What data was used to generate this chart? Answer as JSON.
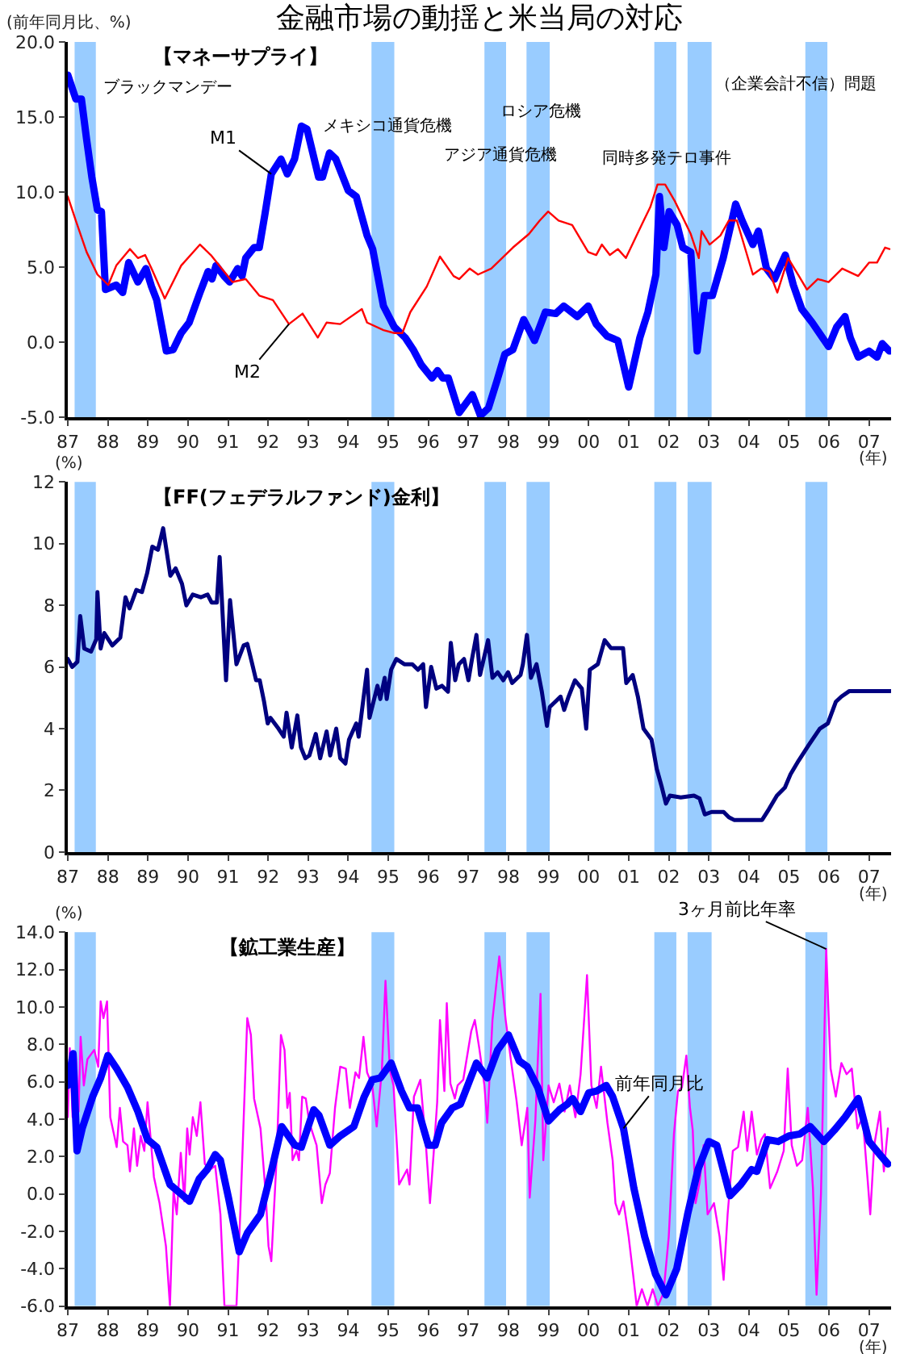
{
  "chart_data": [
    {
      "type": "line",
      "title": "金融市場の動揺と米当局の対応",
      "subtitle": "【マネーサプライ】",
      "ylabel": "(前年同月比、%)",
      "xlabel": "(年)",
      "line_style": "solid",
      "xlim": [
        1987,
        2007.55
      ],
      "xticks": [
        {
          "value": 1987,
          "label": "87"
        },
        {
          "value": 1988,
          "label": "88"
        },
        {
          "value": 1989,
          "label": "89"
        },
        {
          "value": 1990,
          "label": "90"
        },
        {
          "value": 1991,
          "label": "91"
        },
        {
          "value": 1992,
          "label": "92"
        },
        {
          "value": 1993,
          "label": "93"
        },
        {
          "value": 1994,
          "label": "94"
        },
        {
          "value": 1995,
          "label": "95"
        },
        {
          "value": 1996,
          "label": "96"
        },
        {
          "value": 1997,
          "label": "97"
        },
        {
          "value": 1998,
          "label": "98"
        },
        {
          "value": 1999,
          "label": "99"
        },
        {
          "value": 2000,
          "label": "00"
        },
        {
          "value": 2001,
          "label": "01"
        },
        {
          "value": 2002,
          "label": "02"
        },
        {
          "value": 2003,
          "label": "03"
        },
        {
          "value": 2004,
          "label": "04"
        },
        {
          "value": 2005,
          "label": "05"
        },
        {
          "value": 2006,
          "label": "06"
        },
        {
          "value": 2007,
          "label": "07"
        }
      ],
      "ylim": [
        -5,
        20
      ],
      "yticks": [
        {
          "value": -5,
          "label": "-5.0"
        },
        {
          "value": 0,
          "label": "0.0"
        },
        {
          "value": 5,
          "label": "5.0"
        },
        {
          "value": 10,
          "label": "10.0"
        },
        {
          "value": 15,
          "label": "15.0"
        },
        {
          "value": 20,
          "label": "20.0"
        }
      ],
      "bands": [
        {
          "axis": "x",
          "from": 1987.17,
          "to": 1987.7,
          "color": "#99ccff",
          "label": "ブラックマンデー"
        },
        {
          "axis": "x",
          "from": 1994.58,
          "to": 1995.15,
          "color": "#99ccff",
          "label": "メキシコ通貨危機"
        },
        {
          "axis": "x",
          "from": 1997.4,
          "to": 1997.94,
          "color": "#99ccff",
          "label": "アジア通貨危機"
        },
        {
          "axis": "x",
          "from": 1998.45,
          "to": 1999.03,
          "color": "#99ccff",
          "label": "ロシア危機"
        },
        {
          "axis": "x",
          "from": 2001.64,
          "to": 2002.19,
          "color": "#99ccff",
          "label": "同時多発テロ事件"
        },
        {
          "axis": "x",
          "from": 2002.47,
          "to": 2003.07,
          "color": "#99ccff",
          "label": "（企業会計不信）問題"
        },
        {
          "axis": "x",
          "from": 2005.41,
          "to": 2005.96,
          "color": "#99ccff"
        }
      ],
      "series": [
        {
          "name": "M1",
          "color": "#0000ff",
          "x": [
            1987.0,
            1987.2,
            1987.34,
            1987.47,
            1987.6,
            1987.74,
            1987.84,
            1987.94,
            1988.21,
            1988.37,
            1988.52,
            1988.75,
            1988.95,
            1989.09,
            1989.22,
            1989.46,
            1989.63,
            1989.83,
            1990.03,
            1990.3,
            1990.5,
            1990.6,
            1990.7,
            1990.9,
            1991.04,
            1991.24,
            1991.35,
            1991.44,
            1991.65,
            1991.78,
            1991.92,
            1992.08,
            1992.32,
            1992.48,
            1992.66,
            1992.83,
            1992.97,
            1993.26,
            1993.36,
            1993.53,
            1993.69,
            1994.0,
            1994.2,
            1994.47,
            1994.61,
            1994.88,
            1995.15,
            1995.42,
            1995.62,
            1995.82,
            1996.09,
            1996.23,
            1996.36,
            1996.5,
            1996.77,
            1997.1,
            1997.3,
            1997.5,
            1997.71,
            1997.91,
            1998.11,
            1998.38,
            1998.65,
            1998.92,
            1999.18,
            1999.38,
            1999.72,
            1999.99,
            2000.19,
            2000.46,
            2000.73,
            2001.0,
            2001.28,
            2001.48,
            2001.68,
            2001.77,
            2001.88,
            2002.01,
            2002.21,
            2002.35,
            2002.55,
            2002.71,
            2002.89,
            2003.09,
            2003.36,
            2003.67,
            2003.83,
            2004.1,
            2004.24,
            2004.44,
            2004.64,
            2004.91,
            2005.11,
            2005.32,
            2005.58,
            2005.99,
            2006.19,
            2006.4,
            2006.53,
            2006.73,
            2007.0,
            2007.2,
            2007.33,
            2007.51
          ],
          "values": [
            17.8,
            16.2,
            16.2,
            13.5,
            11.0,
            8.8,
            8.7,
            3.5,
            3.8,
            3.3,
            5.3,
            4.0,
            4.9,
            3.7,
            2.8,
            -0.6,
            -0.5,
            0.6,
            1.3,
            3.3,
            4.7,
            4.2,
            5.1,
            4.4,
            4.0,
            4.9,
            4.4,
            5.6,
            6.3,
            6.3,
            8.5,
            11.2,
            12.2,
            11.2,
            12.2,
            14.4,
            14.2,
            11.0,
            11.0,
            12.6,
            12.2,
            10.1,
            9.7,
            7.1,
            6.2,
            2.4,
            1.0,
            0.3,
            -0.5,
            -1.5,
            -2.4,
            -1.9,
            -2.4,
            -2.4,
            -4.7,
            -3.5,
            -4.9,
            -4.4,
            -2.6,
            -0.8,
            -0.5,
            1.5,
            0.1,
            2.0,
            1.9,
            2.4,
            1.7,
            2.4,
            1.2,
            0.4,
            0.1,
            -3.0,
            0.3,
            2.0,
            4.5,
            9.7,
            6.3,
            8.7,
            7.8,
            6.3,
            6.0,
            -0.6,
            3.1,
            3.1,
            5.6,
            9.2,
            8.1,
            6.5,
            7.4,
            4.9,
            4.2,
            5.8,
            3.8,
            2.2,
            1.3,
            -0.3,
            1.0,
            1.7,
            0.3,
            -1.0,
            -0.6,
            -1.0,
            -0.1,
            -0.6
          ]
        },
        {
          "name": "M2",
          "color": "#ff0000",
          "x": [
            1987.0,
            1987.2,
            1987.47,
            1987.74,
            1988.01,
            1988.21,
            1988.55,
            1988.75,
            1988.93,
            1989.09,
            1989.42,
            1989.83,
            1990.3,
            1990.57,
            1990.84,
            1991.11,
            1991.44,
            1991.78,
            1992.12,
            1992.52,
            1992.86,
            1993.24,
            1993.46,
            1993.8,
            1994.34,
            1994.47,
            1994.88,
            1995.15,
            1995.35,
            1995.55,
            1995.96,
            1996.29,
            1996.63,
            1996.77,
            1997.03,
            1997.24,
            1997.57,
            1997.84,
            1998.11,
            1998.51,
            1998.78,
            1998.99,
            1999.25,
            1999.59,
            1999.99,
            2000.19,
            2000.33,
            2000.53,
            2000.73,
            2000.93,
            2001.34,
            2001.54,
            2001.72,
            2001.91,
            2002.15,
            2002.35,
            2002.55,
            2002.75,
            2002.82,
            2003.02,
            2003.29,
            2003.5,
            2003.7,
            2003.9,
            2004.1,
            2004.31,
            2004.51,
            2004.71,
            2004.98,
            2005.25,
            2005.45,
            2005.72,
            2005.99,
            2006.33,
            2006.73,
            2007.0,
            2007.2,
            2007.4,
            2007.51
          ],
          "values": [
            9.7,
            8.1,
            6.0,
            4.5,
            3.8,
            5.1,
            6.2,
            5.6,
            5.8,
            4.9,
            2.9,
            5.1,
            6.5,
            5.8,
            4.9,
            4.0,
            4.2,
            3.1,
            2.8,
            1.2,
            1.9,
            0.3,
            1.3,
            1.2,
            2.2,
            1.3,
            0.8,
            0.6,
            0.6,
            2.0,
            3.7,
            5.7,
            4.4,
            4.2,
            4.9,
            4.5,
            4.9,
            5.6,
            6.3,
            7.2,
            8.1,
            8.7,
            8.1,
            7.8,
            6.0,
            5.8,
            6.5,
            5.8,
            6.2,
            5.6,
            7.9,
            9.0,
            10.5,
            10.5,
            9.4,
            8.3,
            7.2,
            5.6,
            7.4,
            6.5,
            7.1,
            8.1,
            8.1,
            6.3,
            4.5,
            4.9,
            4.7,
            3.3,
            5.6,
            4.4,
            3.5,
            4.2,
            4.0,
            4.9,
            4.4,
            5.3,
            5.3,
            6.3,
            6.2
          ]
        }
      ]
    },
    {
      "type": "line",
      "title": "【FF(フェデラルファンド)金利】",
      "ylabel": "(%)",
      "xlabel": "(年)",
      "line_style": "solid",
      "xlim": [
        1987,
        2007.55
      ],
      "xticks": [
        {
          "value": 1987,
          "label": "87"
        },
        {
          "value": 1988,
          "label": "88"
        },
        {
          "value": 1989,
          "label": "89"
        },
        {
          "value": 1990,
          "label": "90"
        },
        {
          "value": 1991,
          "label": "91"
        },
        {
          "value": 1992,
          "label": "92"
        },
        {
          "value": 1993,
          "label": "93"
        },
        {
          "value": 1994,
          "label": "94"
        },
        {
          "value": 1995,
          "label": "95"
        },
        {
          "value": 1996,
          "label": "96"
        },
        {
          "value": 1997,
          "label": "97"
        },
        {
          "value": 1998,
          "label": "98"
        },
        {
          "value": 1999,
          "label": "99"
        },
        {
          "value": 2000,
          "label": "00"
        },
        {
          "value": 2001,
          "label": "01"
        },
        {
          "value": 2002,
          "label": "02"
        },
        {
          "value": 2003,
          "label": "03"
        },
        {
          "value": 2004,
          "label": "04"
        },
        {
          "value": 2005,
          "label": "05"
        },
        {
          "value": 2006,
          "label": "06"
        },
        {
          "value": 2007,
          "label": "07"
        }
      ],
      "ylim": [
        0,
        12
      ],
      "yticks": [
        0,
        2,
        4,
        6,
        8,
        10,
        12
      ],
      "bands": [
        {
          "axis": "x",
          "from": 1987.17,
          "to": 1987.7,
          "color": "#99ccff"
        },
        {
          "axis": "x",
          "from": 1994.58,
          "to": 1995.15,
          "color": "#99ccff"
        },
        {
          "axis": "x",
          "from": 1997.4,
          "to": 1997.94,
          "color": "#99ccff"
        },
        {
          "axis": "x",
          "from": 1998.45,
          "to": 1999.03,
          "color": "#99ccff"
        },
        {
          "axis": "x",
          "from": 2001.64,
          "to": 2002.19,
          "color": "#99ccff"
        },
        {
          "axis": "x",
          "from": 2002.47,
          "to": 2003.07,
          "color": "#99ccff"
        },
        {
          "axis": "x",
          "from": 2005.41,
          "to": 2005.96,
          "color": "#99ccff"
        }
      ],
      "series": [
        {
          "color": "#000080",
          "x": [
            1987.0,
            1987.11,
            1987.24,
            1987.31,
            1987.41,
            1987.58,
            1987.71,
            1987.74,
            1987.82,
            1987.91,
            1988.11,
            1988.31,
            1988.44,
            1988.54,
            1988.71,
            1988.85,
            1988.98,
            1989.11,
            1989.25,
            1989.38,
            1989.45,
            1989.56,
            1989.69,
            1989.85,
            1989.96,
            1990.12,
            1990.32,
            1990.49,
            1990.59,
            1990.72,
            1990.79,
            1990.95,
            1991.05,
            1991.21,
            1991.39,
            1991.48,
            1991.59,
            1991.7,
            1991.79,
            1991.9,
            1991.99,
            1992.06,
            1992.26,
            1992.39,
            1992.46,
            1992.59,
            1992.73,
            1992.82,
            1992.93,
            1993.03,
            1993.19,
            1993.3,
            1993.46,
            1993.55,
            1993.7,
            1993.8,
            1993.93,
            1994.02,
            1994.2,
            1994.26,
            1994.47,
            1994.53,
            1994.73,
            1994.8,
            1994.91,
            1994.96,
            1995.07,
            1995.2,
            1995.4,
            1995.6,
            1995.74,
            1995.87,
            1995.94,
            1996.07,
            1996.2,
            1996.34,
            1996.49,
            1996.56,
            1996.67,
            1996.76,
            1996.89,
            1997.0,
            1997.09,
            1997.2,
            1997.29,
            1997.49,
            1997.6,
            1997.73,
            1997.87,
            1997.99,
            1998.09,
            1998.3,
            1998.36,
            1998.46,
            1998.56,
            1998.7,
            1998.83,
            1998.96,
            1999.03,
            1999.3,
            1999.39,
            1999.5,
            1999.66,
            1999.83,
            1999.94,
            2000.03,
            2000.23,
            2000.4,
            2000.56,
            2000.86,
            2000.94,
            2001.1,
            2001.23,
            2001.37,
            2001.57,
            2001.7,
            2001.83,
            2001.93,
            2002.03,
            2002.3,
            2002.63,
            2002.77,
            2002.9,
            2003.07,
            2003.37,
            2003.5,
            2003.63,
            2003.9,
            2004.1,
            2004.33,
            2004.5,
            2004.7,
            2004.9,
            2005.04,
            2005.24,
            2005.5,
            2005.77,
            2005.97,
            2006.17,
            2006.31,
            2006.51,
            2006.97,
            2007.53
          ],
          "values": [
            6.26,
            6.0,
            6.17,
            7.65,
            6.6,
            6.5,
            6.9,
            8.43,
            6.6,
            7.1,
            6.7,
            6.95,
            8.26,
            7.9,
            8.5,
            8.43,
            9.04,
            9.9,
            9.8,
            10.5,
            9.9,
            8.96,
            9.2,
            8.7,
            8.0,
            8.35,
            8.26,
            8.35,
            8.09,
            8.09,
            9.57,
            5.57,
            8.17,
            6.09,
            6.7,
            6.75,
            6.17,
            5.57,
            5.57,
            4.87,
            4.17,
            4.35,
            4.0,
            3.74,
            4.52,
            3.39,
            4.43,
            3.39,
            3.04,
            3.13,
            3.83,
            3.04,
            3.91,
            3.13,
            4.0,
            3.04,
            2.87,
            3.65,
            4.17,
            3.74,
            5.91,
            4.35,
            5.39,
            4.96,
            5.65,
            4.96,
            5.91,
            6.26,
            6.09,
            6.09,
            5.91,
            6.09,
            4.7,
            6.0,
            5.3,
            5.39,
            5.2,
            6.78,
            5.57,
            6.09,
            6.26,
            5.57,
            6.26,
            7.04,
            5.74,
            6.87,
            5.65,
            5.83,
            5.57,
            5.83,
            5.48,
            5.74,
            6.09,
            7.04,
            5.65,
            6.09,
            5.22,
            4.09,
            4.7,
            5.04,
            4.61,
            5.04,
            5.57,
            5.3,
            4.0,
            5.91,
            6.09,
            6.87,
            6.61,
            6.61,
            5.48,
            5.74,
            5.04,
            4.0,
            3.65,
            2.7,
            2.09,
            1.57,
            1.83,
            1.77,
            1.83,
            1.74,
            1.22,
            1.3,
            1.3,
            1.13,
            1.04,
            1.04,
            1.04,
            1.04,
            1.39,
            1.83,
            2.09,
            2.52,
            2.96,
            3.48,
            4.0,
            4.17,
            4.87,
            5.04,
            5.22,
            5.22,
            5.22
          ]
        }
      ]
    },
    {
      "type": "line",
      "title": "【鉱工業生産】",
      "ylabel": "(%)",
      "xlabel": "(年)",
      "line_style": "solid",
      "xlim": [
        1987,
        2007.55
      ],
      "xticks": [
        {
          "value": 1987,
          "label": "87"
        },
        {
          "value": 1988,
          "label": "88"
        },
        {
          "value": 1989,
          "label": "89"
        },
        {
          "value": 1990,
          "label": "90"
        },
        {
          "value": 1991,
          "label": "91"
        },
        {
          "value": 1992,
          "label": "92"
        },
        {
          "value": 1993,
          "label": "93"
        },
        {
          "value": 1994,
          "label": "94"
        },
        {
          "value": 1995,
          "label": "95"
        },
        {
          "value": 1996,
          "label": "96"
        },
        {
          "value": 1997,
          "label": "97"
        },
        {
          "value": 1998,
          "label": "98"
        },
        {
          "value": 1999,
          "label": "99"
        },
        {
          "value": 2000,
          "label": "00"
        },
        {
          "value": 2001,
          "label": "01"
        },
        {
          "value": 2002,
          "label": "02"
        },
        {
          "value": 2003,
          "label": "03"
        },
        {
          "value": 2004,
          "label": "04"
        },
        {
          "value": 2005,
          "label": "05"
        },
        {
          "value": 2006,
          "label": "06"
        },
        {
          "value": 2007,
          "label": "07"
        }
      ],
      "ylim": [
        -6,
        14
      ],
      "yticks": [
        {
          "value": -6,
          "label": "-6.0"
        },
        {
          "value": -4,
          "label": "-4.0"
        },
        {
          "value": -2,
          "label": "-2.0"
        },
        {
          "value": 0,
          "label": "0.0"
        },
        {
          "value": 2,
          "label": "2.0"
        },
        {
          "value": 4,
          "label": "4.0"
        },
        {
          "value": 6,
          "label": "6.0"
        },
        {
          "value": 8,
          "label": "8.0"
        },
        {
          "value": 10,
          "label": "10.0"
        },
        {
          "value": 12,
          "label": "12.0"
        },
        {
          "value": 14,
          "label": "14.0"
        }
      ],
      "bands": [
        {
          "axis": "x",
          "from": 1987.17,
          "to": 1987.7,
          "color": "#99ccff"
        },
        {
          "axis": "x",
          "from": 1994.58,
          "to": 1995.15,
          "color": "#99ccff"
        },
        {
          "axis": "x",
          "from": 1997.4,
          "to": 1997.94,
          "color": "#99ccff"
        },
        {
          "axis": "x",
          "from": 1998.45,
          "to": 1999.03,
          "color": "#99ccff"
        },
        {
          "axis": "x",
          "from": 2001.64,
          "to": 2002.19,
          "color": "#99ccff"
        },
        {
          "axis": "x",
          "from": 2002.47,
          "to": 2003.07,
          "color": "#99ccff"
        },
        {
          "axis": "x",
          "from": 2005.41,
          "to": 2005.96,
          "color": "#99ccff"
        }
      ],
      "series": [
        {
          "name": "3ヶ月前比年率",
          "color": "#ff00ff",
          "x": [
            1987.0,
            1987.05,
            1987.12,
            1987.2,
            1987.27,
            1987.32,
            1987.4,
            1987.49,
            1987.66,
            1987.76,
            1987.82,
            1987.89,
            1987.98,
            1988.06,
            1988.22,
            1988.3,
            1988.38,
            1988.49,
            1988.55,
            1988.65,
            1988.73,
            1988.82,
            1988.91,
            1988.99,
            1989.15,
            1989.29,
            1989.45,
            1989.55,
            1989.64,
            1989.72,
            1989.82,
            1989.91,
            1989.98,
            1990.04,
            1990.12,
            1990.22,
            1990.31,
            1990.42,
            1990.55,
            1990.68,
            1990.81,
            1990.91,
            1991.21,
            1991.31,
            1991.48,
            1991.57,
            1991.65,
            1991.81,
            1991.94,
            1992.01,
            1992.08,
            1992.21,
            1992.32,
            1992.41,
            1992.48,
            1992.54,
            1992.61,
            1992.71,
            1992.77,
            1992.85,
            1992.94,
            1993.03,
            1993.21,
            1993.34,
            1993.43,
            1993.54,
            1993.67,
            1993.8,
            1993.94,
            1994.04,
            1994.18,
            1994.27,
            1994.38,
            1994.47,
            1994.6,
            1994.71,
            1994.84,
            1994.93,
            1995.04,
            1995.13,
            1995.27,
            1995.47,
            1995.53,
            1995.64,
            1995.8,
            1995.93,
            1996.04,
            1996.13,
            1996.22,
            1996.29,
            1996.4,
            1996.46,
            1996.55,
            1996.66,
            1996.73,
            1996.87,
            1997.07,
            1997.16,
            1997.27,
            1997.4,
            1997.47,
            1997.6,
            1997.77,
            1997.93,
            1998.07,
            1998.2,
            1998.33,
            1998.47,
            1998.53,
            1998.67,
            1998.8,
            1998.87,
            1999.0,
            1999.13,
            1999.27,
            1999.4,
            1999.53,
            1999.67,
            1999.8,
            1999.96,
            2000.07,
            2000.2,
            2000.31,
            2000.47,
            2000.6,
            2000.67,
            2000.76,
            2000.87,
            2001.0,
            2001.11,
            2001.2,
            2001.33,
            2001.47,
            2001.6,
            2001.73,
            2001.87,
            2002.0,
            2002.13,
            2002.23,
            2002.33,
            2002.44,
            2002.53,
            2002.6,
            2002.67,
            2002.77,
            2002.87,
            2002.97,
            2003.13,
            2003.27,
            2003.37,
            2003.47,
            2003.6,
            2003.73,
            2003.87,
            2003.96,
            2004.07,
            2004.2,
            2004.31,
            2004.4,
            2004.53,
            2004.71,
            2004.87,
            2004.97,
            2005.07,
            2005.2,
            2005.33,
            2005.47,
            2005.6,
            2005.69,
            2005.8,
            2005.93,
            2006.04,
            2006.17,
            2006.31,
            2006.44,
            2006.57,
            2006.71,
            2006.84,
            2006.97,
            2007.03,
            2007.13,
            2007.27,
            2007.37,
            2007.47
          ],
          "values": [
            4.1,
            7.8,
            4.1,
            7.5,
            4.4,
            8.4,
            5.8,
            7.2,
            7.7,
            6.8,
            10.3,
            9.4,
            10.3,
            4.1,
            2.5,
            4.6,
            2.8,
            2.6,
            1.2,
            3.5,
            1.5,
            3.1,
            2.3,
            4.9,
            0.9,
            -0.5,
            -2.8,
            -6.0,
            0.2,
            -1.1,
            2.2,
            -0.4,
            3.5,
            2.1,
            4.1,
            3.1,
            4.9,
            1.6,
            1.3,
            1.5,
            -1.1,
            -6.0,
            -6.0,
            -0.8,
            9.4,
            8.5,
            5.1,
            3.5,
            0.0,
            -2.8,
            -3.6,
            1.8,
            8.5,
            7.7,
            4.6,
            5.4,
            1.8,
            2.3,
            1.8,
            5.2,
            5.1,
            3.8,
            2.6,
            -0.5,
            0.5,
            1.1,
            4.6,
            6.8,
            6.7,
            4.6,
            6.5,
            6.2,
            8.4,
            6.5,
            5.8,
            3.6,
            6.6,
            11.4,
            6.6,
            5.8,
            0.5,
            1.3,
            0.5,
            5.2,
            6.1,
            2.9,
            -0.5,
            2.1,
            4.9,
            9.3,
            5.5,
            10.2,
            5.9,
            5.1,
            5.8,
            6.1,
            8.7,
            9.3,
            7.8,
            5.8,
            3.8,
            9.3,
            12.7,
            9.3,
            7.0,
            5.0,
            2.6,
            4.6,
            -0.2,
            3.9,
            10.7,
            1.8,
            5.8,
            4.9,
            5.9,
            4.4,
            5.8,
            4.1,
            6.4,
            11.7,
            5.8,
            4.6,
            6.8,
            3.8,
            1.8,
            -0.5,
            -1.1,
            -0.4,
            -2.3,
            -4.3,
            -6.0,
            -5.1,
            -6.0,
            -5.1,
            -6.0,
            -5.3,
            -2.3,
            3.2,
            5.5,
            5.7,
            7.4,
            4.6,
            3.4,
            -0.5,
            0.6,
            2.6,
            -1.1,
            -0.5,
            -2.3,
            -4.6,
            -1.1,
            2.3,
            2.5,
            4.4,
            2.3,
            4.4,
            2.1,
            2.9,
            3.2,
            0.3,
            1.2,
            2.3,
            6.7,
            2.6,
            1.5,
            1.8,
            4.6,
            0.3,
            -5.4,
            0.0,
            13.1,
            6.7,
            5.2,
            7.0,
            6.4,
            6.7,
            3.5,
            4.1,
            0.6,
            -1.1,
            2.6,
            4.4,
            1.2,
            3.5
          ]
        },
        {
          "name": "前年同月比",
          "color": "#0000ff",
          "x": [
            1987.0,
            1987.13,
            1987.23,
            1987.36,
            1987.62,
            1987.82,
            1988.0,
            1988.22,
            1988.49,
            1988.75,
            1988.99,
            1989.22,
            1989.55,
            1989.88,
            1990.04,
            1990.28,
            1990.48,
            1990.68,
            1990.81,
            1991.01,
            1991.28,
            1991.48,
            1991.81,
            1992.08,
            1992.34,
            1992.67,
            1992.83,
            1993.14,
            1993.27,
            1993.54,
            1993.8,
            1994.14,
            1994.4,
            1994.6,
            1994.8,
            1995.07,
            1995.33,
            1995.53,
            1995.73,
            1996.0,
            1996.17,
            1996.33,
            1996.6,
            1996.8,
            1997.2,
            1997.47,
            1997.73,
            1998.0,
            1998.27,
            1998.47,
            1998.73,
            1999.0,
            1999.27,
            1999.47,
            1999.6,
            1999.8,
            2000.0,
            2000.2,
            2000.44,
            2000.6,
            2000.87,
            2001.13,
            2001.4,
            2001.67,
            2001.93,
            2002.2,
            2002.47,
            2002.73,
            2003.0,
            2003.2,
            2003.53,
            2003.8,
            2004.07,
            2004.2,
            2004.47,
            2004.73,
            2005.0,
            2005.27,
            2005.53,
            2005.87,
            2006.13,
            2006.4,
            2006.73,
            2007.0,
            2007.27,
            2007.47
          ],
          "values": [
            5.8,
            7.5,
            2.3,
            3.5,
            5.2,
            6.2,
            7.4,
            6.7,
            5.7,
            4.4,
            2.9,
            2.5,
            0.5,
            -0.1,
            -0.4,
            0.8,
            1.3,
            2.1,
            1.8,
            -0.2,
            -3.1,
            -2.1,
            -1.1,
            1.2,
            3.6,
            2.6,
            2.5,
            4.5,
            4.2,
            2.6,
            3.1,
            3.6,
            5.2,
            6.1,
            6.2,
            7.0,
            5.5,
            4.6,
            4.6,
            2.6,
            2.6,
            3.8,
            4.6,
            4.8,
            7.0,
            6.2,
            7.7,
            8.5,
            7.1,
            6.8,
            5.7,
            3.9,
            4.5,
            4.8,
            5.1,
            4.4,
            5.4,
            5.5,
            5.8,
            5.2,
            3.5,
            0.3,
            -2.3,
            -4.3,
            -5.4,
            -4.0,
            -1.1,
            1.3,
            2.8,
            2.6,
            -0.1,
            0.5,
            1.3,
            1.2,
            2.9,
            2.8,
            3.1,
            3.2,
            3.6,
            2.8,
            3.4,
            4.1,
            5.1,
            2.8,
            2.1,
            1.6
          ]
        }
      ]
    }
  ]
}
